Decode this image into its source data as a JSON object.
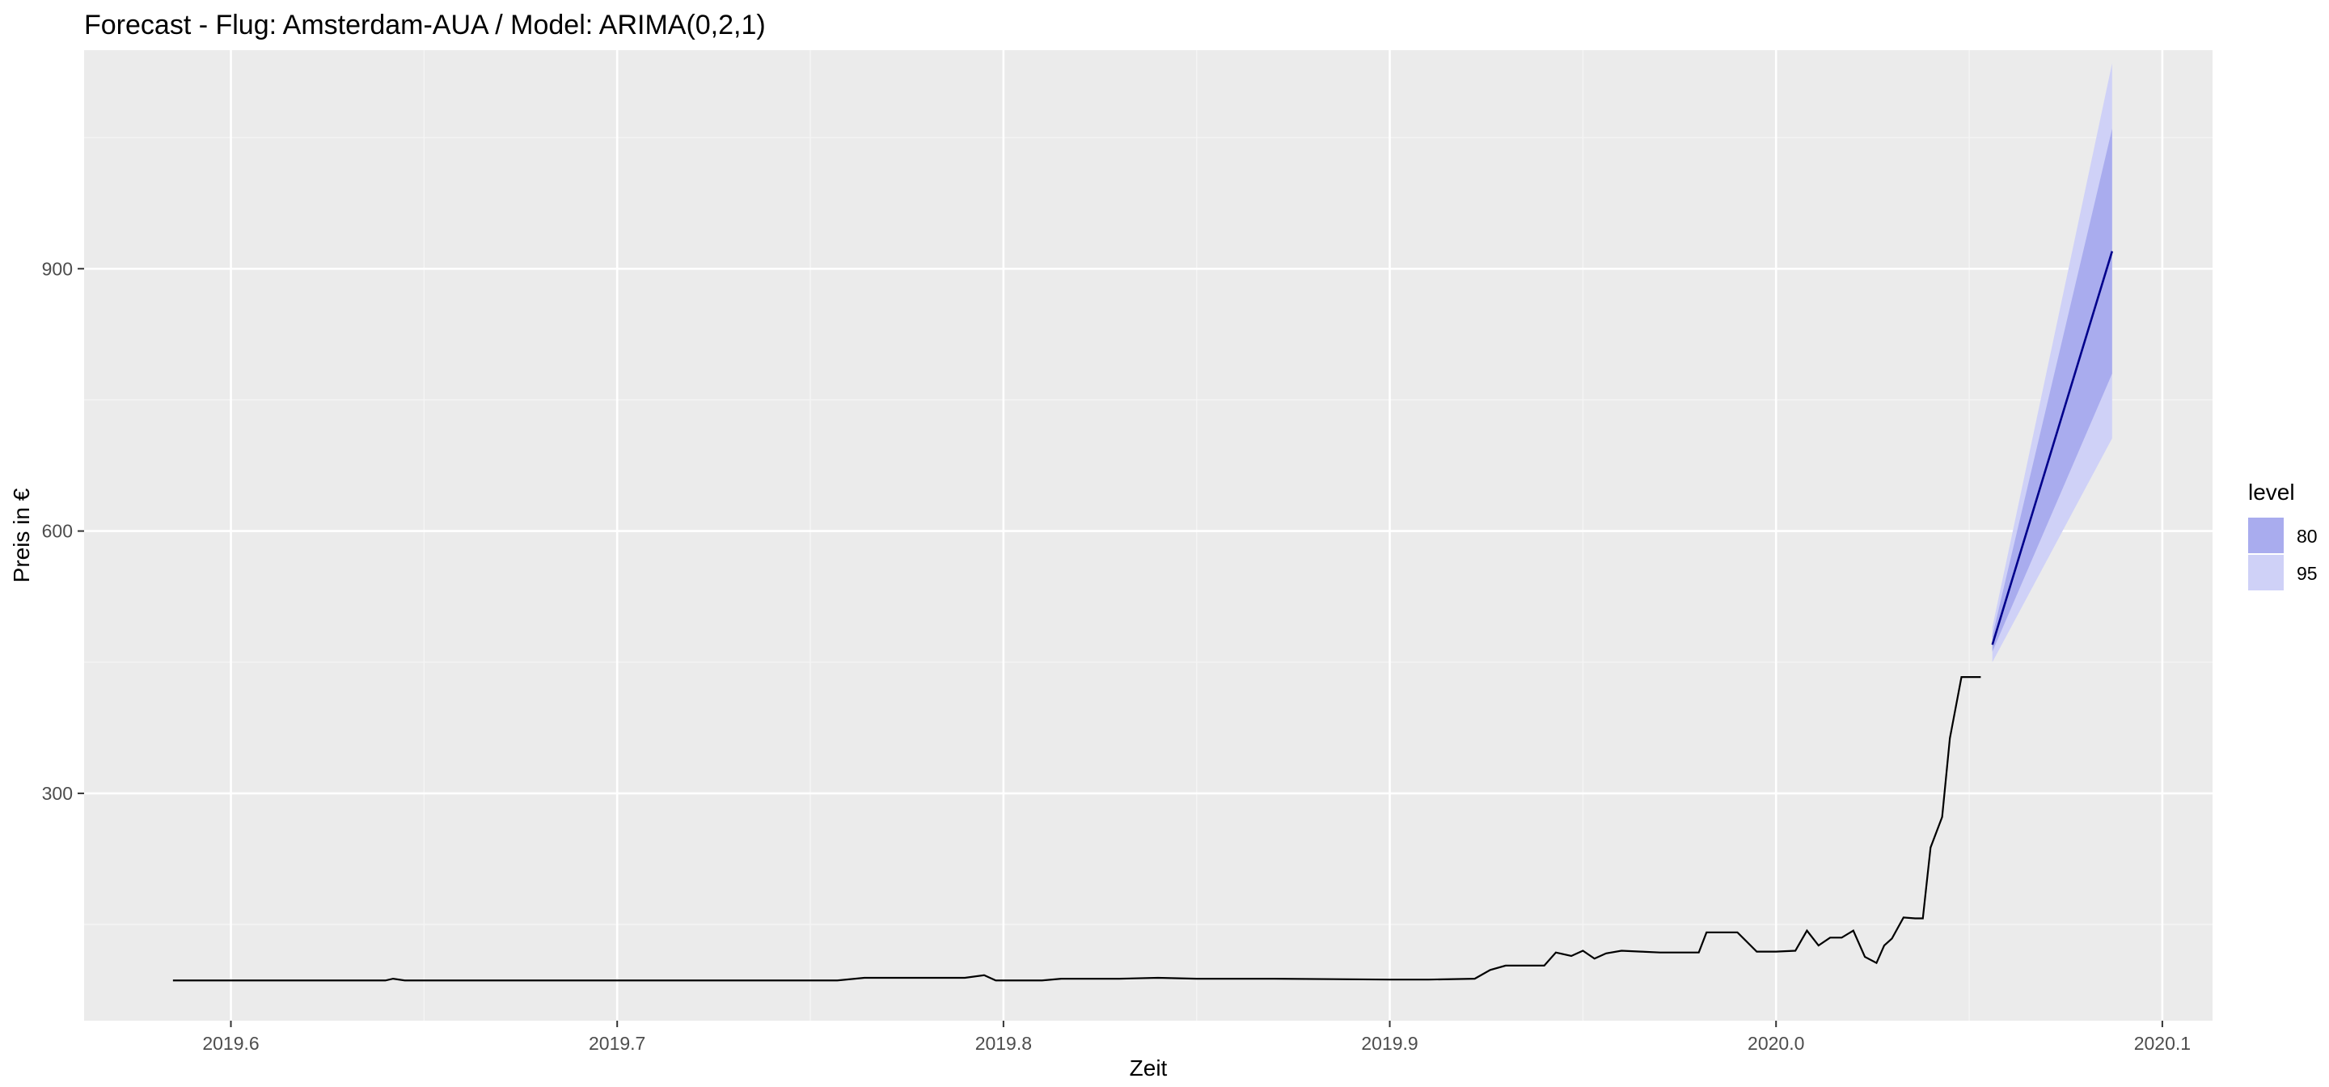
{
  "chart_data": {
    "type": "line",
    "title": "Forecast - Flug: Amsterdam-AUA / Model: ARIMA(0,2,1)",
    "xlabel": "Zeit",
    "ylabel": "Preis in €",
    "xlim": [
      2019.562,
      2020.113
    ],
    "ylim": [
      40,
      1150
    ],
    "x_ticks": [
      {
        "value": 2019.6,
        "label": "2019.6"
      },
      {
        "value": 2019.7,
        "label": "2019.7"
      },
      {
        "value": 2019.8,
        "label": "2019.8"
      },
      {
        "value": 2019.9,
        "label": "2019.9"
      },
      {
        "value": 2020.0,
        "label": "2020.0"
      },
      {
        "value": 2020.1,
        "label": "2020.1"
      }
    ],
    "y_ticks": [
      {
        "value": 300,
        "label": "300"
      },
      {
        "value": 600,
        "label": "600"
      },
      {
        "value": 900,
        "label": "900"
      }
    ],
    "grid": true,
    "legend": {
      "title": "level",
      "position": "right",
      "entries": [
        {
          "label": "80",
          "color": "#a9acee"
        },
        {
          "label": "95",
          "color": "#cfd1f7"
        }
      ]
    },
    "colors": {
      "panel": "#ebebeb",
      "grid_major": "#ffffff",
      "grid_minor": "#f5f5f5",
      "history_line": "#000000",
      "forecast_line": "#00008b",
      "band_80": "#a9acee",
      "band_95": "#cfd1f7"
    },
    "history": {
      "x": [
        2019.585,
        2019.64,
        2019.642,
        2019.645,
        2019.68,
        2019.75,
        2019.757,
        2019.764,
        2019.79,
        2019.795,
        2019.798,
        2019.81,
        2019.815,
        2019.83,
        2019.84,
        2019.85,
        2019.87,
        2019.9,
        2019.91,
        2019.922,
        2019.926,
        2019.93,
        2019.94,
        2019.943,
        2019.947,
        2019.95,
        2019.953,
        2019.956,
        2019.96,
        2019.965,
        2019.97,
        2019.975,
        2019.98,
        2019.982,
        2019.99,
        2019.995,
        2020.0,
        2020.005,
        2020.008,
        2020.011,
        2020.014,
        2020.017,
        2020.02,
        2020.023,
        2020.026,
        2020.028,
        2020.03,
        2020.033,
        2020.036,
        2020.038,
        2020.04,
        2020.043,
        2020.045,
        2020.048,
        2020.05,
        2020.053
      ],
      "y": [
        86,
        86,
        88,
        86,
        86,
        86,
        86,
        89,
        89,
        92,
        86,
        86,
        88,
        88,
        89,
        88,
        88,
        87,
        87,
        88,
        98,
        103,
        103,
        118,
        114,
        120,
        111,
        117,
        120,
        119,
        118,
        118,
        118,
        141,
        141,
        119,
        119,
        120,
        143,
        126,
        135,
        135,
        143,
        113,
        106,
        126,
        134,
        158,
        157,
        157,
        238,
        273,
        363,
        433,
        433,
        433
      ]
    },
    "forecast": {
      "x": [
        2020.056,
        2020.087
      ],
      "y": [
        470,
        920
      ],
      "lo80": [
        462,
        780
      ],
      "hi80": [
        480,
        1060
      ],
      "lo95": [
        450,
        706
      ],
      "hi95": [
        490,
        1135
      ]
    }
  }
}
